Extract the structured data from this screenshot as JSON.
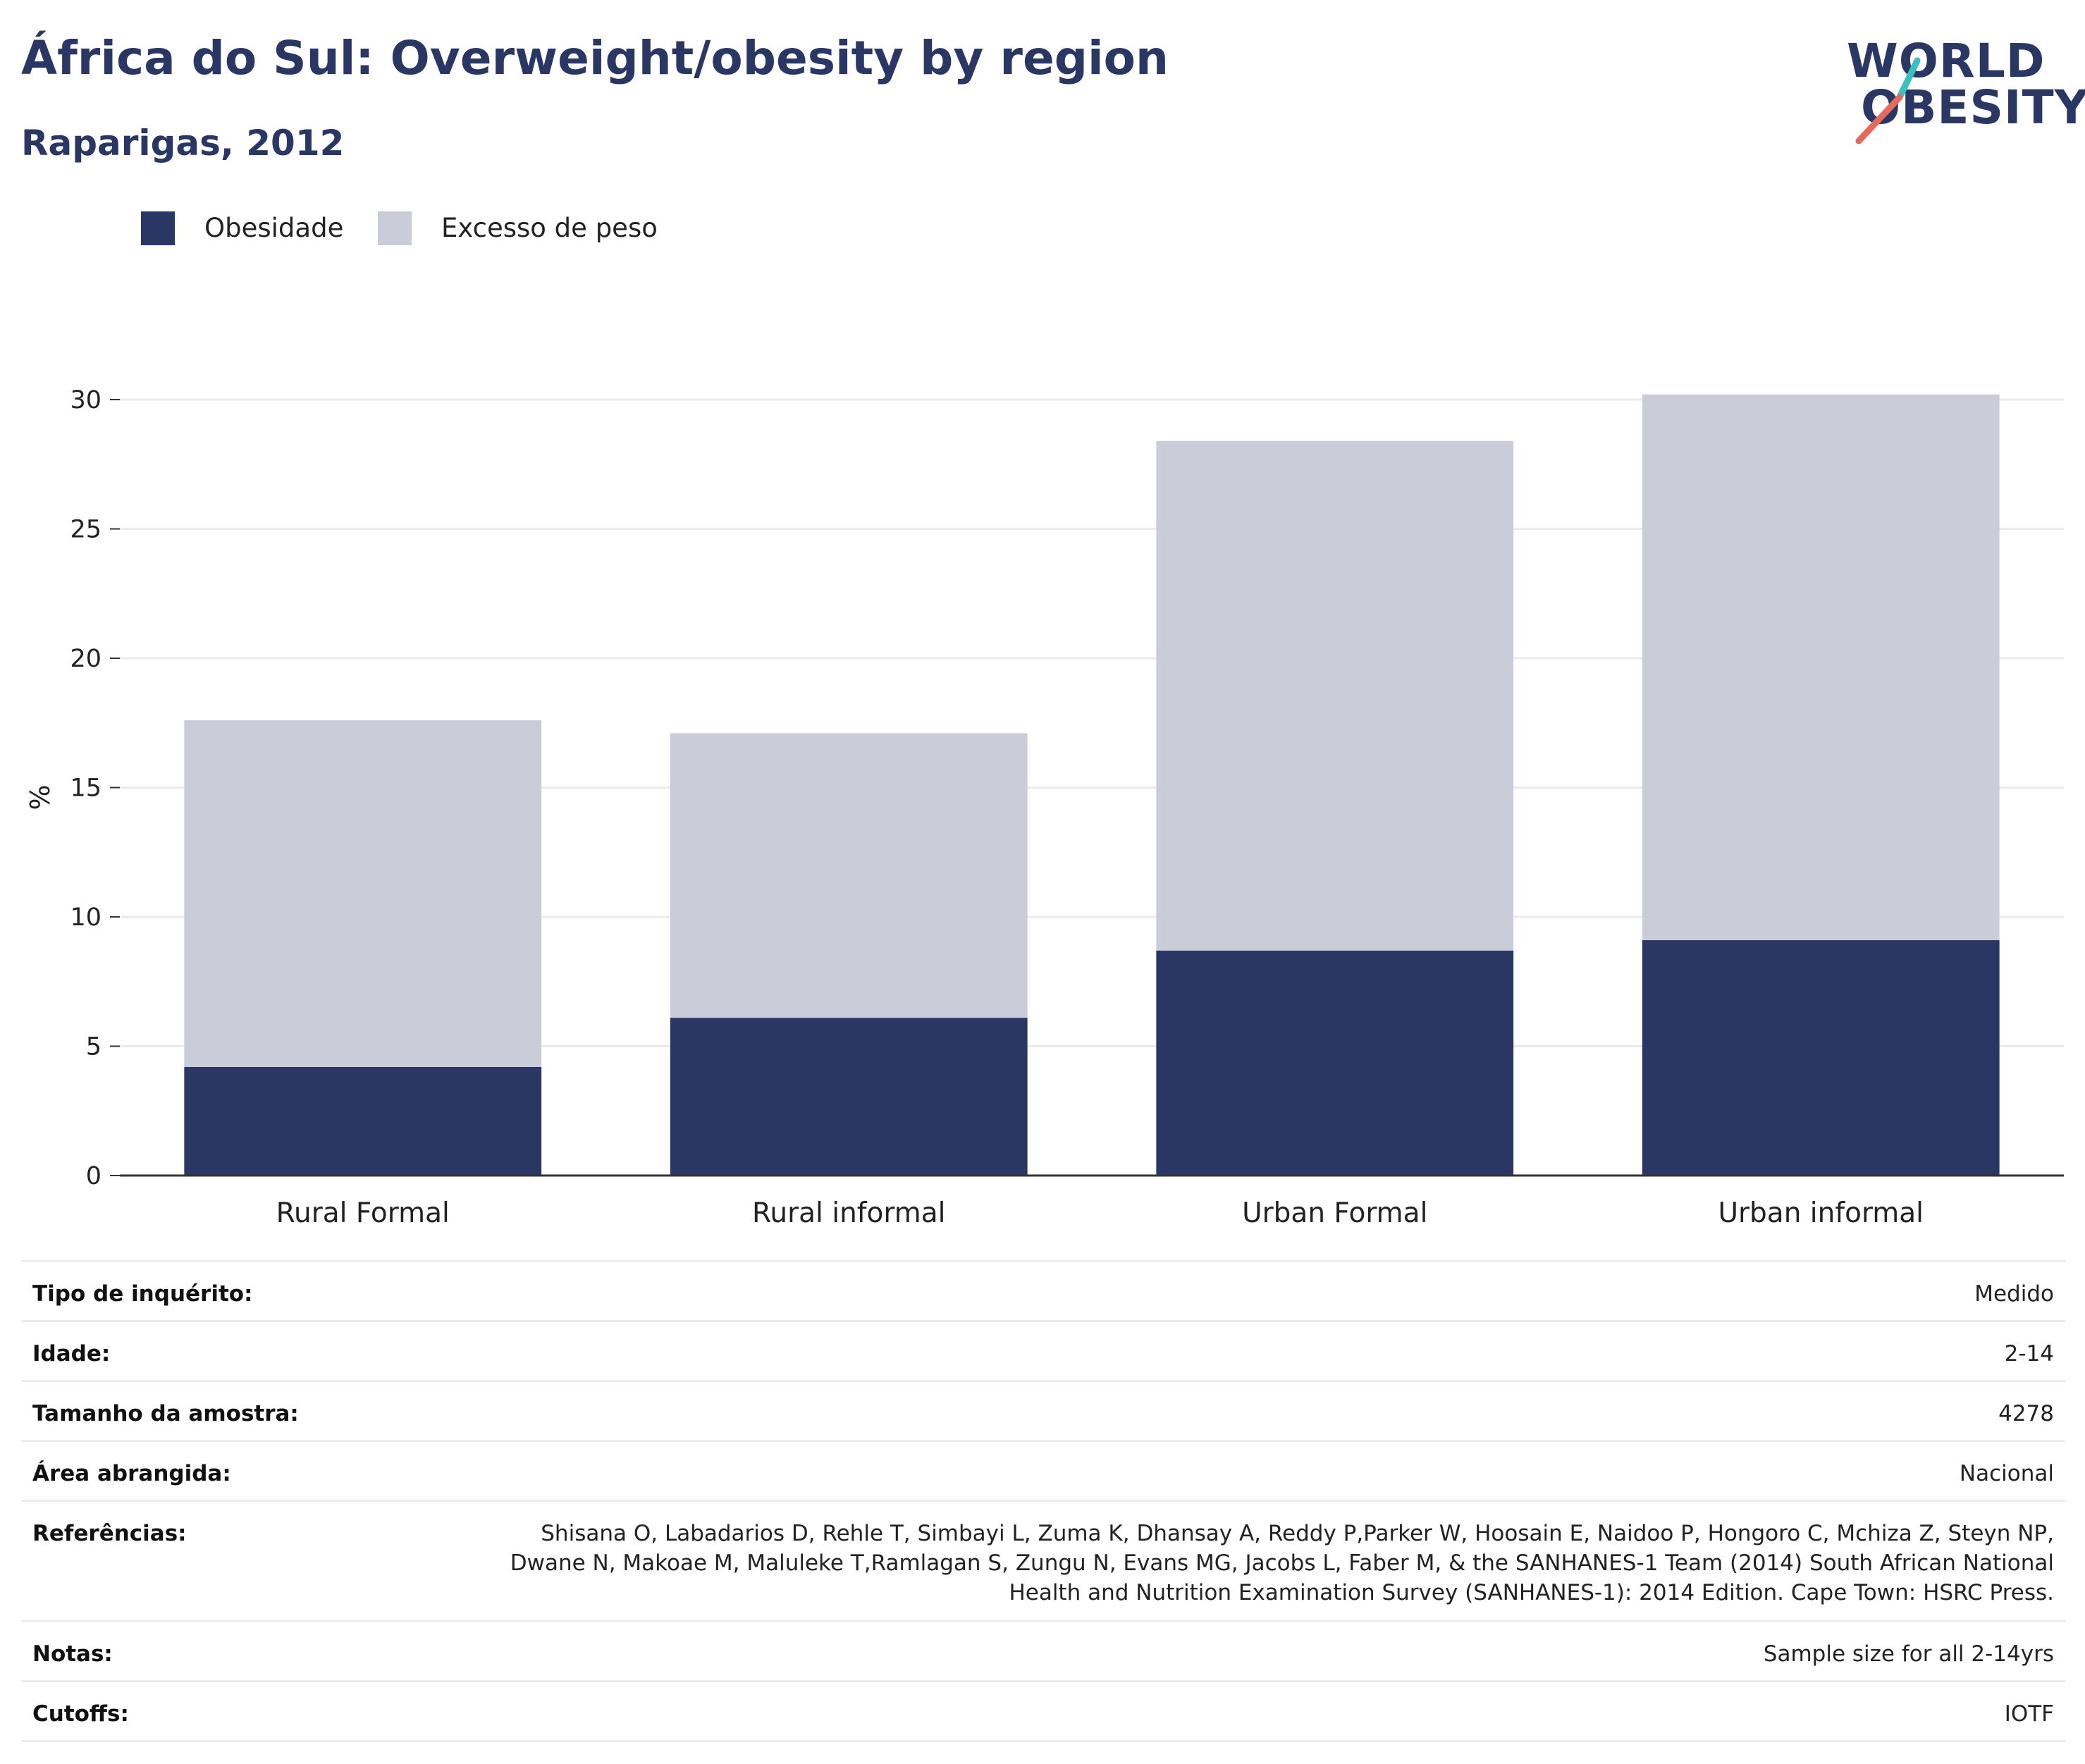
{
  "header": {
    "title": "África do Sul: Overweight/obesity by region",
    "subtitle": "Raparigas, 2012"
  },
  "logo": {
    "line1": "WORLD",
    "line2": "OBESITY",
    "colors": {
      "text": "#2a3764",
      "slash_top": "#3bbfc1",
      "slash_bottom": "#e46a5b"
    }
  },
  "colors": {
    "obesity": "#2a3764",
    "overweight": "#cacdd9",
    "gridline": "#e9ebf0",
    "axis": "#333333"
  },
  "chart_data": {
    "type": "bar",
    "stacked": true,
    "categories": [
      "Rural Formal",
      "Rural informal",
      "Urban Formal",
      "Urban informal"
    ],
    "series": [
      {
        "name": "Obesidade",
        "values": [
          4.2,
          6.1,
          8.7,
          9.1
        ]
      },
      {
        "name": "Excesso de peso",
        "values": [
          13.4,
          11.0,
          19.7,
          21.1
        ]
      }
    ],
    "ylabel": "%",
    "xlabel": "",
    "ylim": [
      0,
      30.4
    ],
    "yticks": [
      0,
      5,
      10,
      15,
      20,
      25,
      30
    ],
    "grid": true,
    "legend_position": "top-left"
  },
  "info": {
    "rows": [
      {
        "key": "Tipo de inquérito:",
        "value": "Medido"
      },
      {
        "key": "Idade:",
        "value": "2-14"
      },
      {
        "key": "Tamanho da amostra:",
        "value": "4278"
      },
      {
        "key": "Área abrangida:",
        "value": "Nacional"
      },
      {
        "key": "Referências:",
        "value": "Shisana O, Labadarios D, Rehle T, Simbayi L, Zuma K, Dhansay A, Reddy P,Parker W, Hoosain E, Naidoo P, Hongoro C, Mchiza Z, Steyn NP, Dwane N, Makoae M, Maluleke T,Ramlagan S, Zungu N, Evans MG, Jacobs L, Faber M, & the SANHANES-1 Team (2014) South African National Health and Nutrition Examination Survey (SANHANES-1): 2014 Edition. Cape Town: HSRC Press."
      },
      {
        "key": "Notas:",
        "value": "Sample size for all 2-14yrs"
      },
      {
        "key": "Cutoffs:",
        "value": "IOTF"
      }
    ]
  }
}
